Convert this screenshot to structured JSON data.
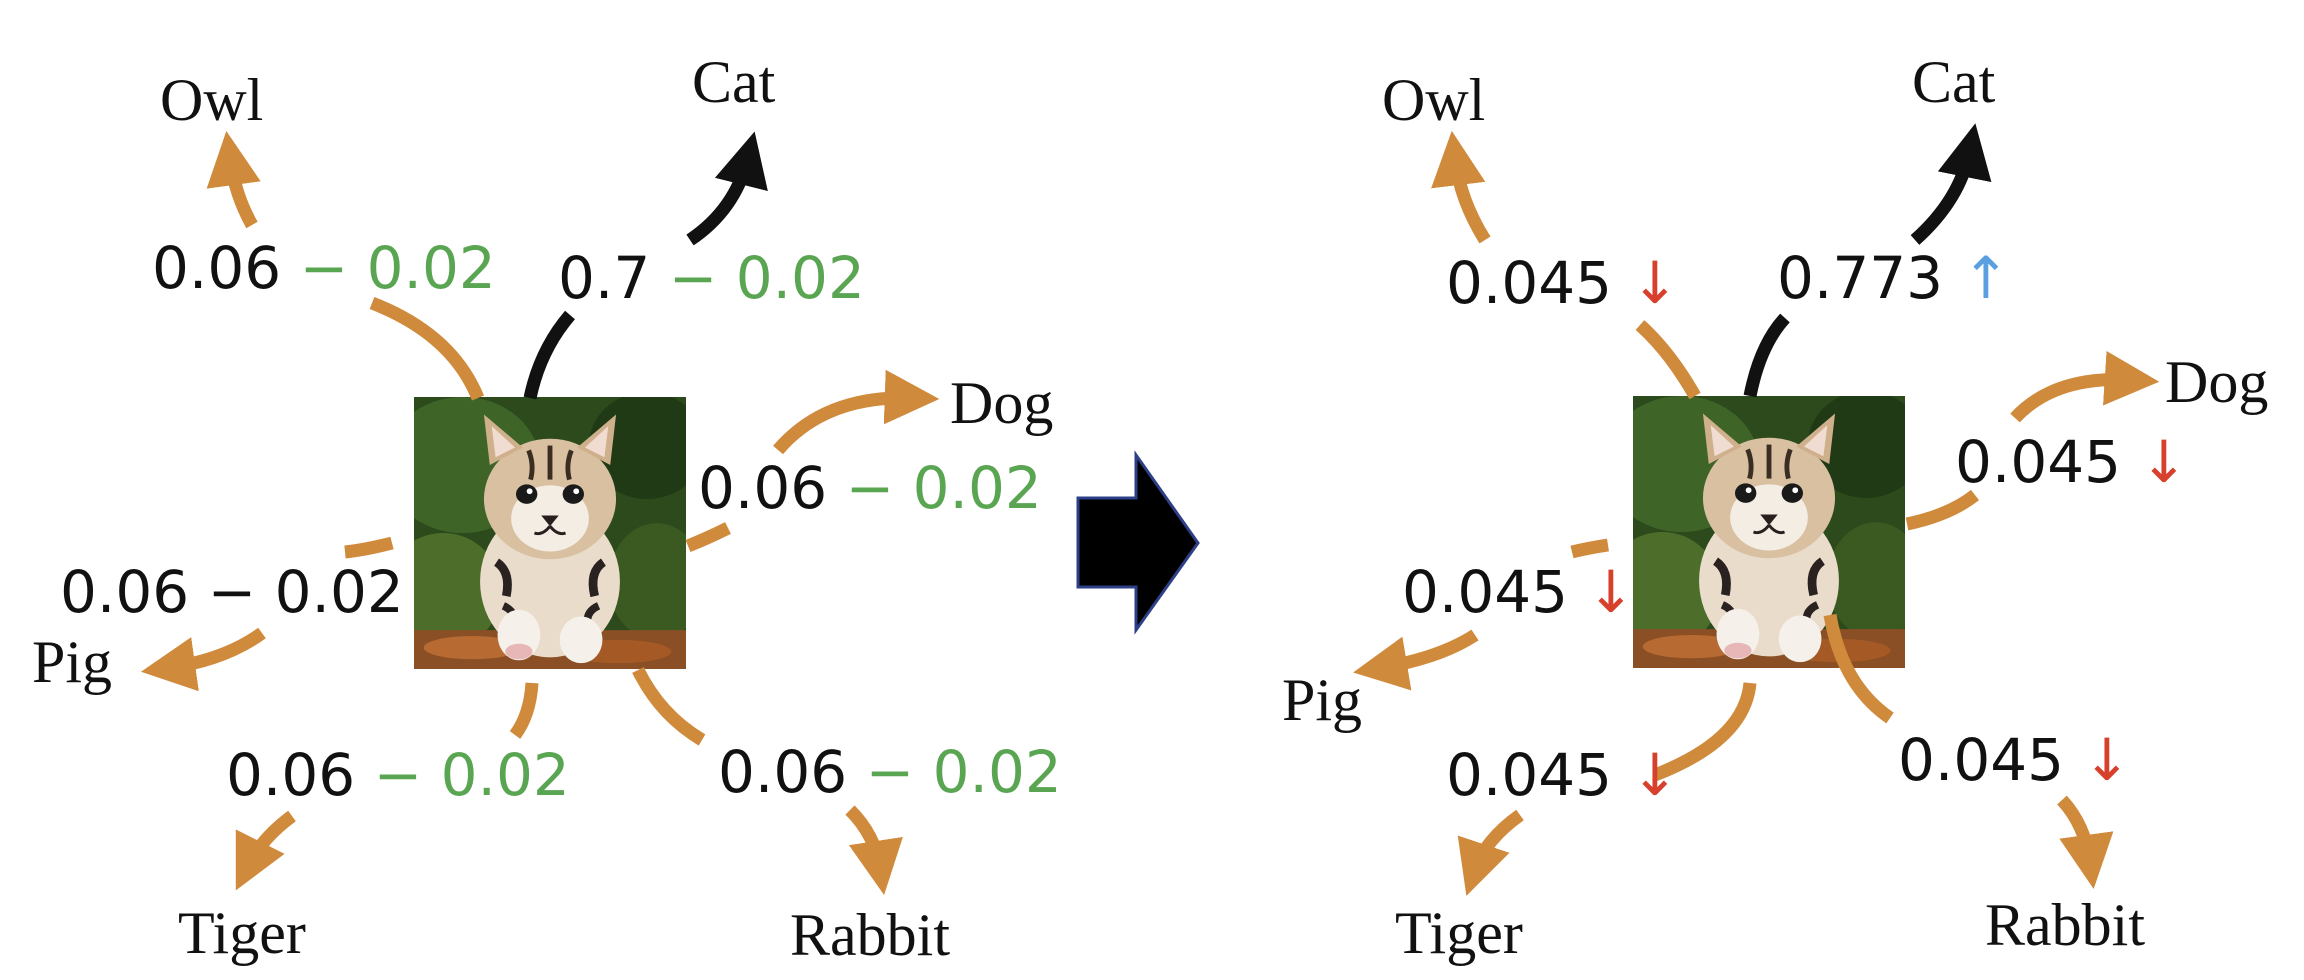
{
  "colors": {
    "arrow": "#d08a3c",
    "cat_arrow": "#111111",
    "minus_green": "#5aa552",
    "down_red": "#d6402c",
    "up_blue": "#5aa0e0",
    "center_arrow": "#000000"
  },
  "icons": {
    "center": "right-arrow-icon",
    "image": "tiger-cat-photo"
  },
  "left": {
    "classes": {
      "owl": "Owl",
      "cat": "Cat",
      "dog": "Dog",
      "pig": "Pig",
      "tiger": "Tiger",
      "rabbit": "Rabbit"
    },
    "values": {
      "owl": "0.06",
      "cat": "0.7",
      "dog": "0.06",
      "pig": "0.06",
      "tiger": "0.06",
      "rabbit": "0.06"
    },
    "minus": "− 0.02"
  },
  "right": {
    "classes": {
      "owl": "Owl",
      "cat": "Cat",
      "dog": "Dog",
      "pig": "Pig",
      "tiger": "Tiger",
      "rabbit": "Rabbit"
    },
    "values": {
      "owl": "0.045",
      "cat": "0.773",
      "dog": "0.045",
      "pig": "0.045",
      "tiger": "0.045",
      "rabbit": "0.045"
    },
    "down": "↓",
    "up": "↑"
  }
}
